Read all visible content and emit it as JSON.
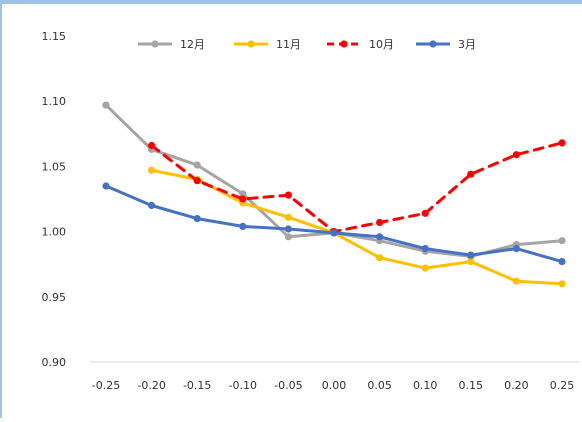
{
  "chart_data": {
    "type": "line",
    "x": [
      -0.25,
      -0.2,
      -0.15,
      -0.1,
      -0.05,
      0.0,
      0.05,
      0.1,
      0.15,
      0.2,
      0.25
    ],
    "x_tick_labels": [
      "-0.25",
      "-0.20",
      "-0.15",
      "-0.10",
      "-0.05",
      "0.00",
      "0.05",
      "0.10",
      "0.15",
      "0.20",
      "0.25"
    ],
    "y_tick_labels": [
      "0.90",
      "0.95",
      "1.00",
      "1.05",
      "1.10",
      "1.15"
    ],
    "y_ticks": [
      0.9,
      0.95,
      1.0,
      1.05,
      1.1,
      1.15
    ],
    "ylim": [
      0.9,
      1.15
    ],
    "xlim": [
      -0.25,
      0.25
    ],
    "grid": false,
    "legend_position": "top",
    "series": [
      {
        "name": "12月",
        "color": "#a5a5a5",
        "dash": "solid",
        "values": [
          1.097,
          1.063,
          1.051,
          1.029,
          0.996,
          0.999,
          0.993,
          0.985,
          0.981,
          0.99,
          0.993
        ]
      },
      {
        "name": "11月",
        "color": "#ffc000",
        "dash": "solid",
        "values": [
          null,
          1.047,
          1.04,
          1.022,
          1.011,
          0.999,
          0.98,
          0.972,
          0.977,
          0.962,
          0.96
        ]
      },
      {
        "name": "10月",
        "color": "#ff0000",
        "dash": "dashed",
        "values": [
          null,
          1.066,
          1.039,
          1.025,
          1.028,
          1.0,
          1.007,
          1.014,
          1.044,
          1.059,
          1.068
        ]
      },
      {
        "name": "3月",
        "color": "#4472c4",
        "dash": "solid",
        "values": [
          1.035,
          1.02,
          1.01,
          1.004,
          1.002,
          0.999,
          0.996,
          0.987,
          0.982,
          0.987,
          0.977
        ]
      }
    ]
  }
}
